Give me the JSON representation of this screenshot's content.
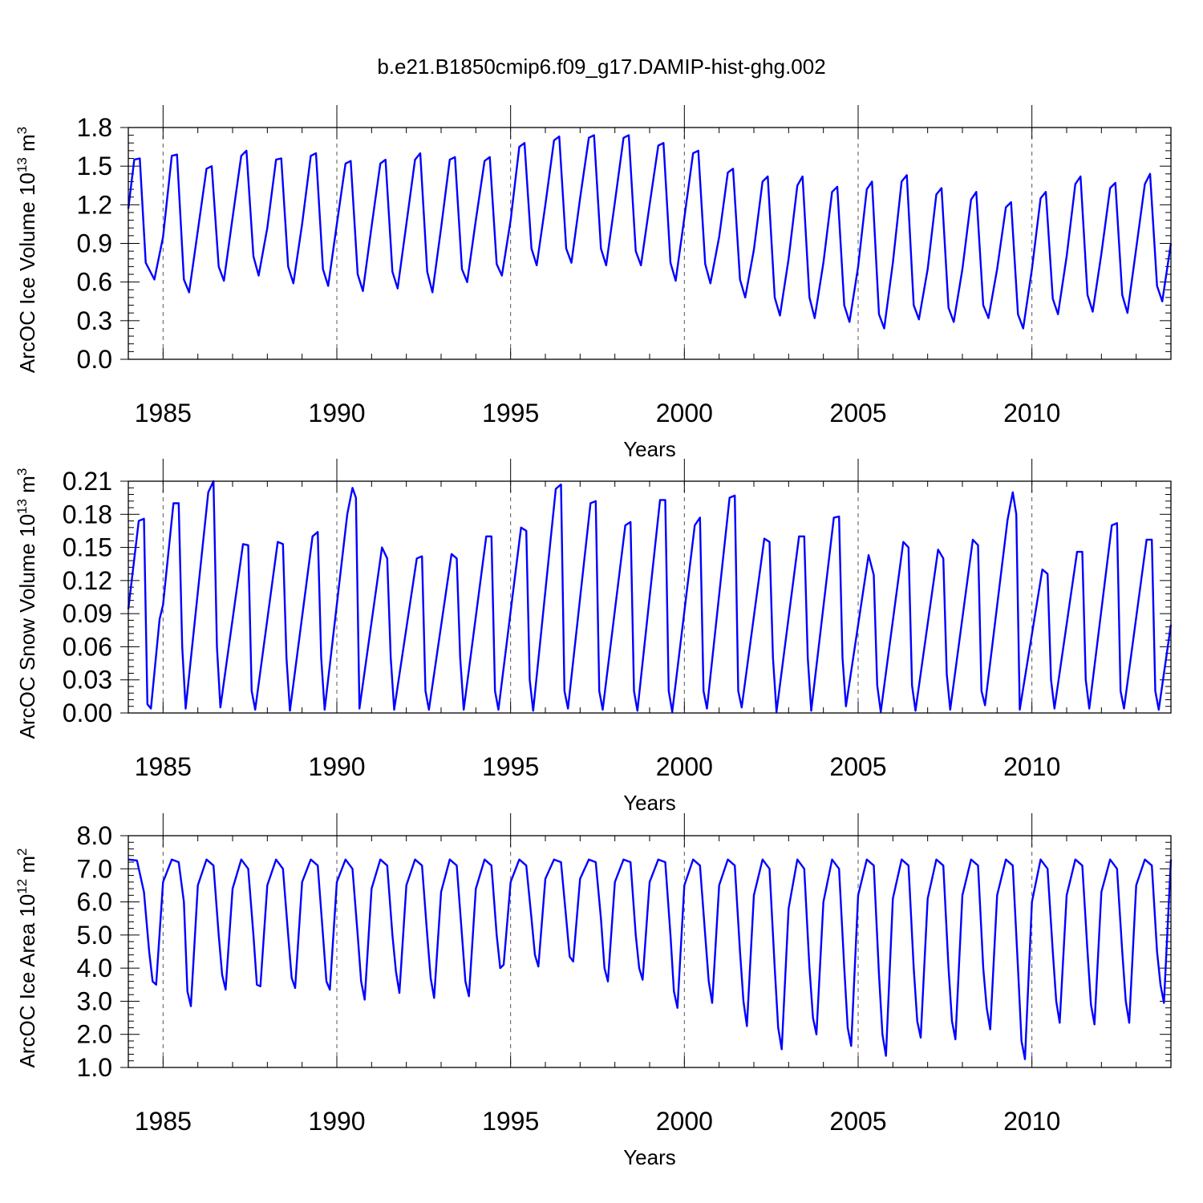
{
  "figure": {
    "title": "b.e21.B1850cmip6.f09_g17.DAMIP-hist-ghg.002"
  },
  "chart_data": [
    {
      "type": "line",
      "id": "ice-volume",
      "title": "",
      "xlabel": "Years",
      "ylabel": "ArcOC Ice Volume 10",
      "ylabel_exp": "13",
      "ylabel_unit": " m",
      "ylabel_unit_exp": "3",
      "xlim": [
        1984.0,
        2014.0
      ],
      "ylim": [
        0.0,
        1.8
      ],
      "xticks": [
        "1985",
        "1990",
        "1995",
        "2000",
        "2005",
        "2010"
      ],
      "yticks": [
        "0.0",
        "0.3",
        "0.6",
        "0.9",
        "1.2",
        "1.5",
        "1.8"
      ],
      "grid": "vertical dashed at major x ticks",
      "line_color": "#0000ff",
      "series": [
        {
          "x": [
            1984.0,
            1984.17,
            1984.33,
            1984.5,
            1984.75,
            1985.0,
            1985.25,
            1985.4,
            1985.6,
            1985.75,
            1986.0,
            1986.25,
            1986.4,
            1986.6,
            1986.75,
            1987.0,
            1987.25,
            1987.4,
            1987.6,
            1987.75,
            1988.0,
            1988.25,
            1988.4,
            1988.6,
            1988.75,
            1989.0,
            1989.25,
            1989.4,
            1989.6,
            1989.75,
            1990.0,
            1990.25,
            1990.4,
            1990.6,
            1990.75,
            1991.0,
            1991.25,
            1991.4,
            1991.6,
            1991.75,
            1992.0,
            1992.25,
            1992.4,
            1992.6,
            1992.75,
            1993.0,
            1993.25,
            1993.4,
            1993.6,
            1993.75,
            1994.0,
            1994.25,
            1994.4,
            1994.6,
            1994.75,
            1995.0,
            1995.25,
            1995.4,
            1995.6,
            1995.75,
            1996.0,
            1996.25,
            1996.4,
            1996.6,
            1996.75,
            1997.0,
            1997.25,
            1997.4,
            1997.6,
            1997.75,
            1998.0,
            1998.25,
            1998.4,
            1998.6,
            1998.75,
            1999.0,
            1999.25,
            1999.4,
            1999.6,
            1999.75,
            2000.0,
            2000.25,
            2000.4,
            2000.6,
            2000.75,
            2001.0,
            2001.25,
            2001.4,
            2001.6,
            2001.75,
            2002.0,
            2002.25,
            2002.4,
            2002.6,
            2002.75,
            2003.0,
            2003.25,
            2003.4,
            2003.6,
            2003.75,
            2004.0,
            2004.25,
            2004.4,
            2004.6,
            2004.75,
            2005.0,
            2005.25,
            2005.4,
            2005.6,
            2005.75,
            2006.0,
            2006.25,
            2006.4,
            2006.6,
            2006.75,
            2007.0,
            2007.25,
            2007.4,
            2007.6,
            2007.75,
            2008.0,
            2008.25,
            2008.4,
            2008.6,
            2008.75,
            2009.0,
            2009.25,
            2009.4,
            2009.6,
            2009.75,
            2010.0,
            2010.25,
            2010.4,
            2010.6,
            2010.75,
            2011.0,
            2011.25,
            2011.4,
            2011.6,
            2011.75,
            2012.0,
            2012.25,
            2012.4,
            2012.6,
            2012.75,
            2013.0,
            2013.25,
            2013.4,
            2013.6,
            2013.75,
            2014.0
          ],
          "values": [
            1.17,
            1.55,
            1.56,
            0.75,
            0.62,
            0.95,
            1.58,
            1.59,
            0.62,
            0.52,
            1.0,
            1.48,
            1.5,
            0.72,
            0.61,
            1.1,
            1.58,
            1.62,
            0.8,
            0.65,
            1.02,
            1.55,
            1.56,
            0.72,
            0.59,
            1.05,
            1.58,
            1.6,
            0.7,
            0.57,
            1.05,
            1.52,
            1.54,
            0.66,
            0.53,
            1.03,
            1.52,
            1.55,
            0.68,
            0.55,
            1.05,
            1.55,
            1.6,
            0.68,
            0.52,
            1.02,
            1.55,
            1.57,
            0.7,
            0.6,
            1.08,
            1.54,
            1.57,
            0.74,
            0.65,
            1.08,
            1.65,
            1.68,
            0.86,
            0.73,
            1.2,
            1.7,
            1.73,
            0.86,
            0.75,
            1.25,
            1.72,
            1.74,
            0.86,
            0.73,
            1.22,
            1.72,
            1.74,
            0.84,
            0.73,
            1.2,
            1.66,
            1.68,
            0.75,
            0.61,
            1.1,
            1.6,
            1.62,
            0.74,
            0.59,
            0.95,
            1.45,
            1.48,
            0.62,
            0.48,
            0.85,
            1.38,
            1.42,
            0.48,
            0.34,
            0.78,
            1.35,
            1.42,
            0.48,
            0.32,
            0.75,
            1.3,
            1.34,
            0.42,
            0.29,
            0.72,
            1.32,
            1.38,
            0.35,
            0.24,
            0.75,
            1.38,
            1.43,
            0.42,
            0.31,
            0.7,
            1.28,
            1.33,
            0.4,
            0.29,
            0.7,
            1.24,
            1.3,
            0.42,
            0.32,
            0.7,
            1.18,
            1.22,
            0.35,
            0.24,
            0.7,
            1.25,
            1.3,
            0.47,
            0.35,
            0.8,
            1.36,
            1.42,
            0.5,
            0.37,
            0.82,
            1.33,
            1.37,
            0.5,
            0.36,
            0.86,
            1.36,
            1.44,
            0.57,
            0.45,
            0.9
          ]
        }
      ]
    },
    {
      "type": "line",
      "id": "snow-volume",
      "title": "",
      "xlabel": "Years",
      "ylabel": "ArcOC Snow Volume 10",
      "ylabel_exp": "13",
      "ylabel_unit": " m",
      "ylabel_unit_exp": "3",
      "xlim": [
        1984.0,
        2014.0
      ],
      "ylim": [
        0.0,
        0.21
      ],
      "xticks": [
        "1985",
        "1990",
        "1995",
        "2000",
        "2005",
        "2010"
      ],
      "yticks": [
        "0.00",
        "0.03",
        "0.06",
        "0.09",
        "0.12",
        "0.15",
        "0.18",
        "0.21"
      ],
      "grid": "vertical dashed at major x ticks",
      "line_color": "#0000ff",
      "series": [
        {
          "x": [
            1984.0,
            1984.3,
            1984.45,
            1984.55,
            1984.65,
            1984.9,
            1985.0,
            1985.3,
            1985.45,
            1985.55,
            1985.65,
            1986.3,
            1986.45,
            1986.55,
            1986.65,
            1987.3,
            1987.45,
            1987.55,
            1987.65,
            1988.3,
            1988.45,
            1988.55,
            1988.65,
            1989.3,
            1989.45,
            1989.55,
            1989.65,
            1990.3,
            1990.45,
            1990.55,
            1990.65,
            1991.3,
            1991.45,
            1991.55,
            1991.65,
            1992.3,
            1992.45,
            1992.55,
            1992.65,
            1993.3,
            1993.45,
            1993.55,
            1993.65,
            1994.3,
            1994.45,
            1994.55,
            1994.65,
            1995.3,
            1995.45,
            1995.55,
            1995.65,
            1996.3,
            1996.45,
            1996.55,
            1996.65,
            1997.3,
            1997.45,
            1997.55,
            1997.65,
            1998.3,
            1998.45,
            1998.55,
            1998.65,
            1999.3,
            1999.45,
            1999.55,
            1999.65,
            2000.3,
            2000.45,
            2000.55,
            2000.65,
            2001.3,
            2001.45,
            2001.55,
            2001.65,
            2002.3,
            2002.45,
            2002.55,
            2002.65,
            2003.3,
            2003.45,
            2003.55,
            2003.65,
            2004.3,
            2004.45,
            2004.55,
            2004.65,
            2005.3,
            2005.45,
            2005.55,
            2005.65,
            2006.3,
            2006.45,
            2006.55,
            2006.65,
            2007.3,
            2007.45,
            2007.55,
            2007.65,
            2008.3,
            2008.45,
            2008.55,
            2008.65,
            2009.3,
            2009.45,
            2009.55,
            2009.65,
            2010.3,
            2010.45,
            2010.55,
            2010.65,
            2011.3,
            2011.45,
            2011.55,
            2011.65,
            2012.3,
            2012.45,
            2012.55,
            2012.65,
            2013.3,
            2013.45,
            2013.55,
            2013.65,
            2014.0
          ],
          "values": [
            0.094,
            0.174,
            0.176,
            0.008,
            0.004,
            0.085,
            0.098,
            0.19,
            0.19,
            0.06,
            0.004,
            0.2,
            0.21,
            0.06,
            0.005,
            0.153,
            0.152,
            0.02,
            0.003,
            0.155,
            0.153,
            0.05,
            0.002,
            0.16,
            0.164,
            0.05,
            0.003,
            0.18,
            0.204,
            0.195,
            0.004,
            0.15,
            0.14,
            0.05,
            0.003,
            0.14,
            0.142,
            0.02,
            0.003,
            0.144,
            0.14,
            0.05,
            0.003,
            0.16,
            0.16,
            0.02,
            0.003,
            0.168,
            0.165,
            0.03,
            0.002,
            0.203,
            0.207,
            0.02,
            0.004,
            0.19,
            0.192,
            0.02,
            0.003,
            0.17,
            0.173,
            0.02,
            0.002,
            0.193,
            0.193,
            0.02,
            0.001,
            0.17,
            0.177,
            0.02,
            0.004,
            0.195,
            0.197,
            0.02,
            0.005,
            0.158,
            0.155,
            0.05,
            0.001,
            0.16,
            0.16,
            0.05,
            0.002,
            0.177,
            0.178,
            0.05,
            0.006,
            0.143,
            0.125,
            0.025,
            0.001,
            0.155,
            0.15,
            0.025,
            0.002,
            0.148,
            0.14,
            0.035,
            0.003,
            0.157,
            0.152,
            0.02,
            0.007,
            0.175,
            0.2,
            0.18,
            0.003,
            0.13,
            0.126,
            0.03,
            0.004,
            0.146,
            0.146,
            0.03,
            0.004,
            0.17,
            0.172,
            0.02,
            0.004,
            0.157,
            0.157,
            0.02,
            0.003,
            0.08
          ]
        }
      ]
    },
    {
      "type": "line",
      "id": "ice-area",
      "title": "",
      "xlabel": "Years",
      "ylabel": "ArcOC Ice Area 10",
      "ylabel_exp": "12",
      "ylabel_unit": " m",
      "ylabel_unit_exp": "2",
      "xlim": [
        1984.0,
        2014.0
      ],
      "ylim": [
        1.0,
        8.0
      ],
      "xticks": [
        "1985",
        "1990",
        "1995",
        "2000",
        "2005",
        "2010"
      ],
      "yticks": [
        "1.0",
        "2.0",
        "3.0",
        "4.0",
        "5.0",
        "6.0",
        "7.0",
        "8.0"
      ],
      "grid": "vertical dashed at major x ticks",
      "line_color": "#0000ff",
      "series": [
        {
          "x": [
            1984.0,
            1984.25,
            1984.45,
            1984.6,
            1984.7,
            1984.8,
            1985.0,
            1985.25,
            1985.45,
            1985.6,
            1985.7,
            1985.8,
            1986.0,
            1986.25,
            1986.45,
            1986.6,
            1986.7,
            1986.8,
            1987.0,
            1987.25,
            1987.45,
            1987.6,
            1987.7,
            1987.8,
            1988.0,
            1988.25,
            1988.45,
            1988.6,
            1988.7,
            1988.8,
            1989.0,
            1989.25,
            1989.45,
            1989.6,
            1989.7,
            1989.8,
            1990.0,
            1990.25,
            1990.45,
            1990.6,
            1990.7,
            1990.8,
            1991.0,
            1991.25,
            1991.45,
            1991.6,
            1991.7,
            1991.8,
            1992.0,
            1992.25,
            1992.45,
            1992.6,
            1992.7,
            1992.8,
            1993.0,
            1993.25,
            1993.45,
            1993.6,
            1993.7,
            1993.8,
            1994.0,
            1994.25,
            1994.45,
            1994.6,
            1994.7,
            1994.8,
            1995.0,
            1995.25,
            1995.45,
            1995.6,
            1995.7,
            1995.8,
            1996.0,
            1996.25,
            1996.45,
            1996.6,
            1996.7,
            1996.8,
            1997.0,
            1997.25,
            1997.45,
            1997.6,
            1997.7,
            1997.8,
            1998.0,
            1998.25,
            1998.45,
            1998.6,
            1998.7,
            1998.8,
            1999.0,
            1999.25,
            1999.45,
            1999.6,
            1999.7,
            1999.8,
            2000.0,
            2000.25,
            2000.45,
            2000.6,
            2000.7,
            2000.8,
            2001.0,
            2001.25,
            2001.45,
            2001.6,
            2001.7,
            2001.8,
            2002.0,
            2002.25,
            2002.45,
            2002.6,
            2002.7,
            2002.8,
            2003.0,
            2003.25,
            2003.45,
            2003.6,
            2003.7,
            2003.8,
            2004.0,
            2004.25,
            2004.45,
            2004.6,
            2004.7,
            2004.8,
            2005.0,
            2005.25,
            2005.45,
            2005.6,
            2005.7,
            2005.8,
            2006.0,
            2006.25,
            2006.45,
            2006.6,
            2006.7,
            2006.8,
            2007.0,
            2007.25,
            2007.45,
            2007.6,
            2007.7,
            2007.8,
            2008.0,
            2008.25,
            2008.45,
            2008.6,
            2008.7,
            2008.8,
            2009.0,
            2009.25,
            2009.45,
            2009.6,
            2009.7,
            2009.8,
            2010.0,
            2010.25,
            2010.45,
            2010.6,
            2010.7,
            2010.8,
            2011.0,
            2011.25,
            2011.45,
            2011.6,
            2011.7,
            2011.8,
            2012.0,
            2012.25,
            2012.45,
            2012.6,
            2012.7,
            2012.8,
            2013.0,
            2013.25,
            2013.45,
            2013.6,
            2013.7,
            2013.8,
            2014.0
          ],
          "values": [
            7.28,
            7.25,
            6.3,
            4.5,
            3.6,
            3.5,
            6.6,
            7.28,
            7.2,
            6.0,
            3.3,
            2.85,
            6.5,
            7.28,
            7.1,
            5.0,
            3.8,
            3.35,
            6.4,
            7.28,
            7.0,
            5.0,
            3.5,
            3.45,
            6.5,
            7.28,
            7.0,
            5.0,
            3.7,
            3.4,
            6.6,
            7.28,
            7.1,
            5.0,
            3.6,
            3.35,
            6.6,
            7.28,
            7.0,
            5.0,
            3.6,
            3.05,
            6.4,
            7.28,
            7.1,
            5.0,
            3.9,
            3.25,
            6.5,
            7.28,
            7.1,
            5.0,
            3.7,
            3.1,
            6.3,
            7.28,
            7.1,
            5.0,
            3.6,
            3.15,
            6.4,
            7.28,
            7.1,
            5.0,
            4.0,
            4.1,
            6.6,
            7.28,
            7.1,
            5.5,
            4.4,
            4.05,
            6.7,
            7.28,
            7.2,
            5.5,
            4.35,
            4.2,
            6.7,
            7.28,
            7.2,
            5.5,
            4.0,
            3.6,
            6.6,
            7.28,
            7.2,
            5.0,
            4.0,
            3.65,
            6.6,
            7.28,
            7.2,
            5.0,
            3.3,
            2.8,
            6.5,
            7.28,
            7.1,
            5.0,
            3.6,
            2.95,
            6.5,
            7.28,
            7.1,
            4.5,
            3.0,
            2.25,
            6.2,
            7.28,
            7.0,
            4.0,
            2.2,
            1.55,
            5.8,
            7.28,
            7.0,
            4.0,
            2.5,
            2.0,
            6.0,
            7.28,
            7.0,
            4.0,
            2.2,
            1.65,
            6.2,
            7.28,
            7.1,
            3.8,
            2.0,
            1.35,
            6.1,
            7.28,
            7.1,
            4.0,
            2.4,
            1.9,
            6.1,
            7.28,
            7.1,
            4.0,
            2.4,
            1.85,
            6.2,
            7.28,
            7.1,
            4.0,
            2.8,
            2.15,
            6.2,
            7.28,
            7.1,
            4.0,
            1.8,
            1.25,
            6.0,
            7.28,
            7.0,
            4.5,
            3.0,
            2.35,
            6.2,
            7.28,
            7.1,
            4.5,
            2.9,
            2.3,
            6.3,
            7.28,
            7.0,
            4.5,
            3.0,
            2.35,
            6.5,
            7.28,
            7.1,
            4.5,
            3.5,
            2.95,
            7.28
          ]
        }
      ]
    }
  ]
}
